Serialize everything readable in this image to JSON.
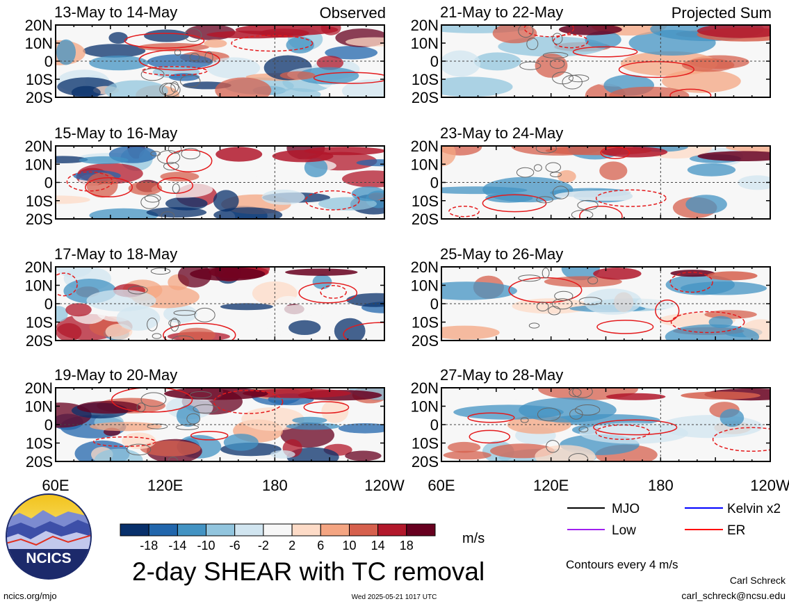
{
  "columns": [
    {
      "label": "Observed"
    },
    {
      "label": "Projected Sum"
    }
  ],
  "panels": [
    {
      "date": "13-May to 14-May"
    },
    {
      "date": "15-May to 16-May"
    },
    {
      "date": "17-May to 18-May"
    },
    {
      "date": "19-May to 20-May"
    },
    {
      "date": "21-May to 22-May"
    },
    {
      "date": "23-May to 24-May"
    },
    {
      "date": "25-May to 26-May"
    },
    {
      "date": "27-May to 28-May"
    }
  ],
  "lat_ticks": [
    "20N",
    "10N",
    "0",
    "10S",
    "20S"
  ],
  "lon_ticks": [
    "60E",
    "120E",
    "180",
    "120W"
  ],
  "title": "2-day SHEAR with TC removal",
  "units": "m/s",
  "colorbar": {
    "labels": [
      "-18",
      "-14",
      "-10",
      "-6",
      "-2",
      "2",
      "6",
      "10",
      "14",
      "18"
    ],
    "colors": [
      "#08306b",
      "#2166ac",
      "#4393c3",
      "#92c5de",
      "#d1e5f0",
      "#f7f7f7",
      "#fddbc7",
      "#f4a582",
      "#d6604d",
      "#b2182b",
      "#67001f"
    ]
  },
  "legend": {
    "items": [
      {
        "label": "MJO",
        "color": "#000000"
      },
      {
        "label": "Kelvin x2",
        "color": "#0000ff"
      },
      {
        "label": "Low",
        "color": "#a020f0"
      },
      {
        "label": "ER",
        "color": "#ff0000"
      }
    ],
    "note": "Contours every 4 m/s"
  },
  "logo": {
    "text": "NCICS"
  },
  "footer": {
    "url": "ncics.org/mjo",
    "timestamp": "Wed 2025-05-21 1017 UTC",
    "author": "Carl Schreck",
    "email": "carl_schreck@ncsu.edu"
  },
  "chart_data": {
    "type": "heatmap",
    "title": "2-day SHEAR with TC removal",
    "units": "m/s",
    "x_range": [
      "60E",
      "120W"
    ],
    "y_range": [
      "20S",
      "20N"
    ],
    "color_levels": [
      -18,
      -14,
      -10,
      -6,
      -2,
      2,
      6,
      10,
      14,
      18
    ],
    "contour_interval": 4,
    "contour_series": [
      "MJO",
      "Kelvin x2",
      "Low",
      "ER"
    ],
    "panels": [
      {
        "label": "13-May to 14-May",
        "column": "Observed"
      },
      {
        "label": "15-May to 16-May",
        "column": "Observed"
      },
      {
        "label": "17-May to 18-May",
        "column": "Observed"
      },
      {
        "label": "19-May to 20-May",
        "column": "Observed"
      },
      {
        "label": "21-May to 22-May",
        "column": "Projected Sum"
      },
      {
        "label": "23-May to 24-May",
        "column": "Projected Sum"
      },
      {
        "label": "25-May to 26-May",
        "column": "Projected Sum"
      },
      {
        "label": "27-May to 28-May",
        "column": "Projected Sum"
      }
    ]
  }
}
